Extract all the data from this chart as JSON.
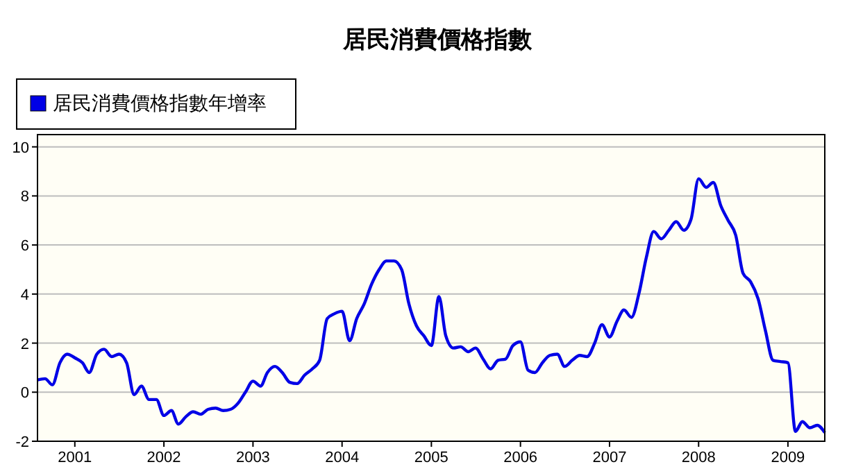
{
  "chart_data": {
    "type": "line",
    "title": "居民消費價格指數",
    "legend": "top left",
    "grid": "y",
    "xlim": [
      "2000-08",
      "2009-06"
    ],
    "xticks": [
      "2001",
      "2002",
      "2003",
      "2004",
      "2005",
      "2006",
      "2007",
      "2008",
      "2009"
    ],
    "ylim": [
      -2,
      10.5
    ],
    "yticks": [
      -2,
      0,
      2,
      4,
      6,
      8,
      10
    ],
    "x": [
      "2000-08",
      "2000-09",
      "2000-10",
      "2000-11",
      "2000-12",
      "2001-01",
      "2001-02",
      "2001-03",
      "2001-04",
      "2001-05",
      "2001-06",
      "2001-07",
      "2001-08",
      "2001-09",
      "2001-10",
      "2001-11",
      "2001-12",
      "2002-01",
      "2002-02",
      "2002-03",
      "2002-04",
      "2002-05",
      "2002-06",
      "2002-07",
      "2002-08",
      "2002-09",
      "2002-10",
      "2002-11",
      "2002-12",
      "2003-01",
      "2003-02",
      "2003-03",
      "2003-04",
      "2003-05",
      "2003-06",
      "2003-07",
      "2003-08",
      "2003-09",
      "2003-10",
      "2003-11",
      "2003-12",
      "2004-01",
      "2004-02",
      "2004-03",
      "2004-04",
      "2004-05",
      "2004-06",
      "2004-07",
      "2004-08",
      "2004-09",
      "2004-10",
      "2004-11",
      "2004-12",
      "2005-01",
      "2005-02",
      "2005-03",
      "2005-04",
      "2005-05",
      "2005-06",
      "2005-07",
      "2005-08",
      "2005-09",
      "2005-10",
      "2005-11",
      "2005-12",
      "2006-01",
      "2006-02",
      "2006-03",
      "2006-04",
      "2006-05",
      "2006-06",
      "2006-07",
      "2006-08",
      "2006-09",
      "2006-10",
      "2006-11",
      "2006-12",
      "2007-01",
      "2007-02",
      "2007-03",
      "2007-04",
      "2007-05",
      "2007-06",
      "2007-07",
      "2007-08",
      "2007-09",
      "2007-10",
      "2007-11",
      "2007-12",
      "2008-01",
      "2008-02",
      "2008-03",
      "2008-04",
      "2008-05",
      "2008-06",
      "2008-07",
      "2008-08",
      "2008-09",
      "2008-10",
      "2008-11",
      "2008-12",
      "2009-01",
      "2009-02",
      "2009-03",
      "2009-04",
      "2009-05",
      "2009-06"
    ],
    "series": [
      {
        "name": "居民消費價格指數年增率",
        "color": "#0000e6",
        "values": [
          0.5,
          0.55,
          0.3,
          1.2,
          1.55,
          1.4,
          1.2,
          0.8,
          1.55,
          1.75,
          1.45,
          1.55,
          1.2,
          -0.1,
          0.25,
          -0.3,
          -0.3,
          -0.95,
          -0.75,
          -1.3,
          -1.0,
          -0.8,
          -0.9,
          -0.7,
          -0.65,
          -0.75,
          -0.7,
          -0.45,
          0.0,
          0.45,
          0.25,
          0.8,
          1.05,
          0.8,
          0.4,
          0.35,
          0.7,
          0.95,
          1.3,
          3.0,
          3.2,
          3.3,
          2.1,
          3.0,
          3.6,
          4.4,
          5.0,
          5.35,
          5.35,
          5.0,
          3.6,
          2.7,
          2.3,
          1.9,
          3.9,
          2.3,
          1.8,
          1.85,
          1.65,
          1.8,
          1.35,
          0.95,
          1.3,
          1.35,
          1.9,
          2.05,
          0.9,
          0.8,
          1.2,
          1.5,
          1.55,
          1.05,
          1.3,
          1.5,
          1.45,
          2.0,
          2.75,
          2.25,
          2.9,
          3.35,
          3.05,
          4.0,
          5.5,
          6.55,
          6.25,
          6.6,
          6.95,
          6.6,
          7.05,
          8.7,
          8.35,
          8.55,
          7.6,
          7.0,
          6.4,
          4.85,
          4.5,
          3.8,
          2.5,
          1.3,
          1.25,
          1.2,
          -1.6,
          -1.2,
          -1.45,
          -1.35,
          -1.65
        ]
      }
    ]
  }
}
